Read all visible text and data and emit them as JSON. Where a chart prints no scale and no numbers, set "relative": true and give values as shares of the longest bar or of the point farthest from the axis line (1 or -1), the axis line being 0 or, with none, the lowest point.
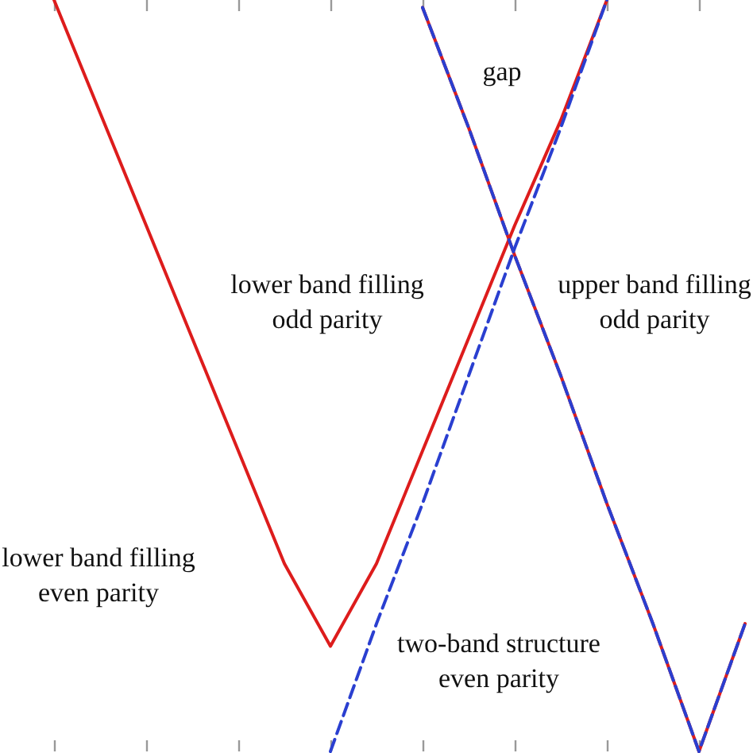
{
  "chart_data": {
    "type": "line",
    "relative": true,
    "tick_labels": false,
    "grid": false,
    "marker": "none",
    "categories": [
      null,
      null,
      null,
      null,
      null,
      null,
      null,
      null,
      null,
      null,
      null,
      null,
      null,
      null,
      null,
      null,
      null
    ],
    "series": [
      {
        "color": "#dd1c1c",
        "line_style": "solid",
        "values": [
          null,
          1.0,
          0.85,
          0.7,
          0.55,
          0.4,
          0.25,
          0.14,
          0.25,
          0.4,
          0.55,
          0.7,
          0.84,
          1.0,
          null,
          null,
          null
        ]
      },
      {
        "color": "#dd1c1c",
        "line_style": "solid",
        "values": [
          null,
          null,
          null,
          null,
          null,
          null,
          null,
          null,
          null,
          0.99,
          0.83,
          0.66,
          0.5,
          0.33,
          0.17,
          0,
          0.17
        ]
      },
      {
        "color": "#2a3fd0",
        "line_style": "dashed",
        "values": [
          null,
          null,
          null,
          null,
          null,
          null,
          null,
          0,
          0.17,
          0.33,
          0.5,
          0.67,
          0.83,
          1.0,
          null,
          null,
          null
        ]
      },
      {
        "color": "#2a3fd0",
        "line_style": "dashed",
        "values": [
          null,
          null,
          null,
          null,
          null,
          null,
          null,
          null,
          null,
          0.99,
          0.83,
          0.66,
          0.5,
          0.33,
          0.17,
          0,
          0.17
        ]
      }
    ],
    "annotations": [
      "gap",
      "lower band filling\nodd parity",
      "upper band filling\nodd parity",
      "lower band filling\neven parity",
      "two-band structure\neven parity"
    ]
  }
}
